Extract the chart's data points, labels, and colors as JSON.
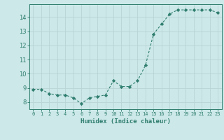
{
  "x": [
    0,
    1,
    2,
    3,
    4,
    5,
    6,
    7,
    8,
    9,
    10,
    11,
    12,
    13,
    14,
    15,
    16,
    17,
    18,
    19,
    20,
    21,
    22,
    23
  ],
  "y": [
    8.9,
    8.9,
    8.6,
    8.5,
    8.5,
    8.3,
    7.9,
    8.3,
    8.4,
    8.5,
    9.5,
    9.1,
    9.1,
    9.5,
    10.6,
    12.8,
    13.5,
    14.2,
    14.5,
    14.5,
    14.5,
    14.5,
    14.5,
    14.3
  ],
  "line_color": "#2e7d6e",
  "marker": "D",
  "marker_size": 2.2,
  "bg_color": "#cce8e8",
  "grid_color": "#b8d4d4",
  "xlabel": "Humidex (Indice chaleur)",
  "ylim": [
    7.5,
    14.9
  ],
  "xlim": [
    -0.5,
    23.5
  ],
  "yticks": [
    8,
    9,
    10,
    11,
    12,
    13,
    14
  ],
  "xtick_labels": [
    "0",
    "1",
    "2",
    "3",
    "4",
    "5",
    "6",
    "7",
    "8",
    "9",
    "10",
    "11",
    "12",
    "13",
    "14",
    "15",
    "16",
    "17",
    "18",
    "19",
    "20",
    "21",
    "22",
    "23"
  ],
  "tick_color": "#2e7d6e",
  "label_color": "#2e7d6e"
}
